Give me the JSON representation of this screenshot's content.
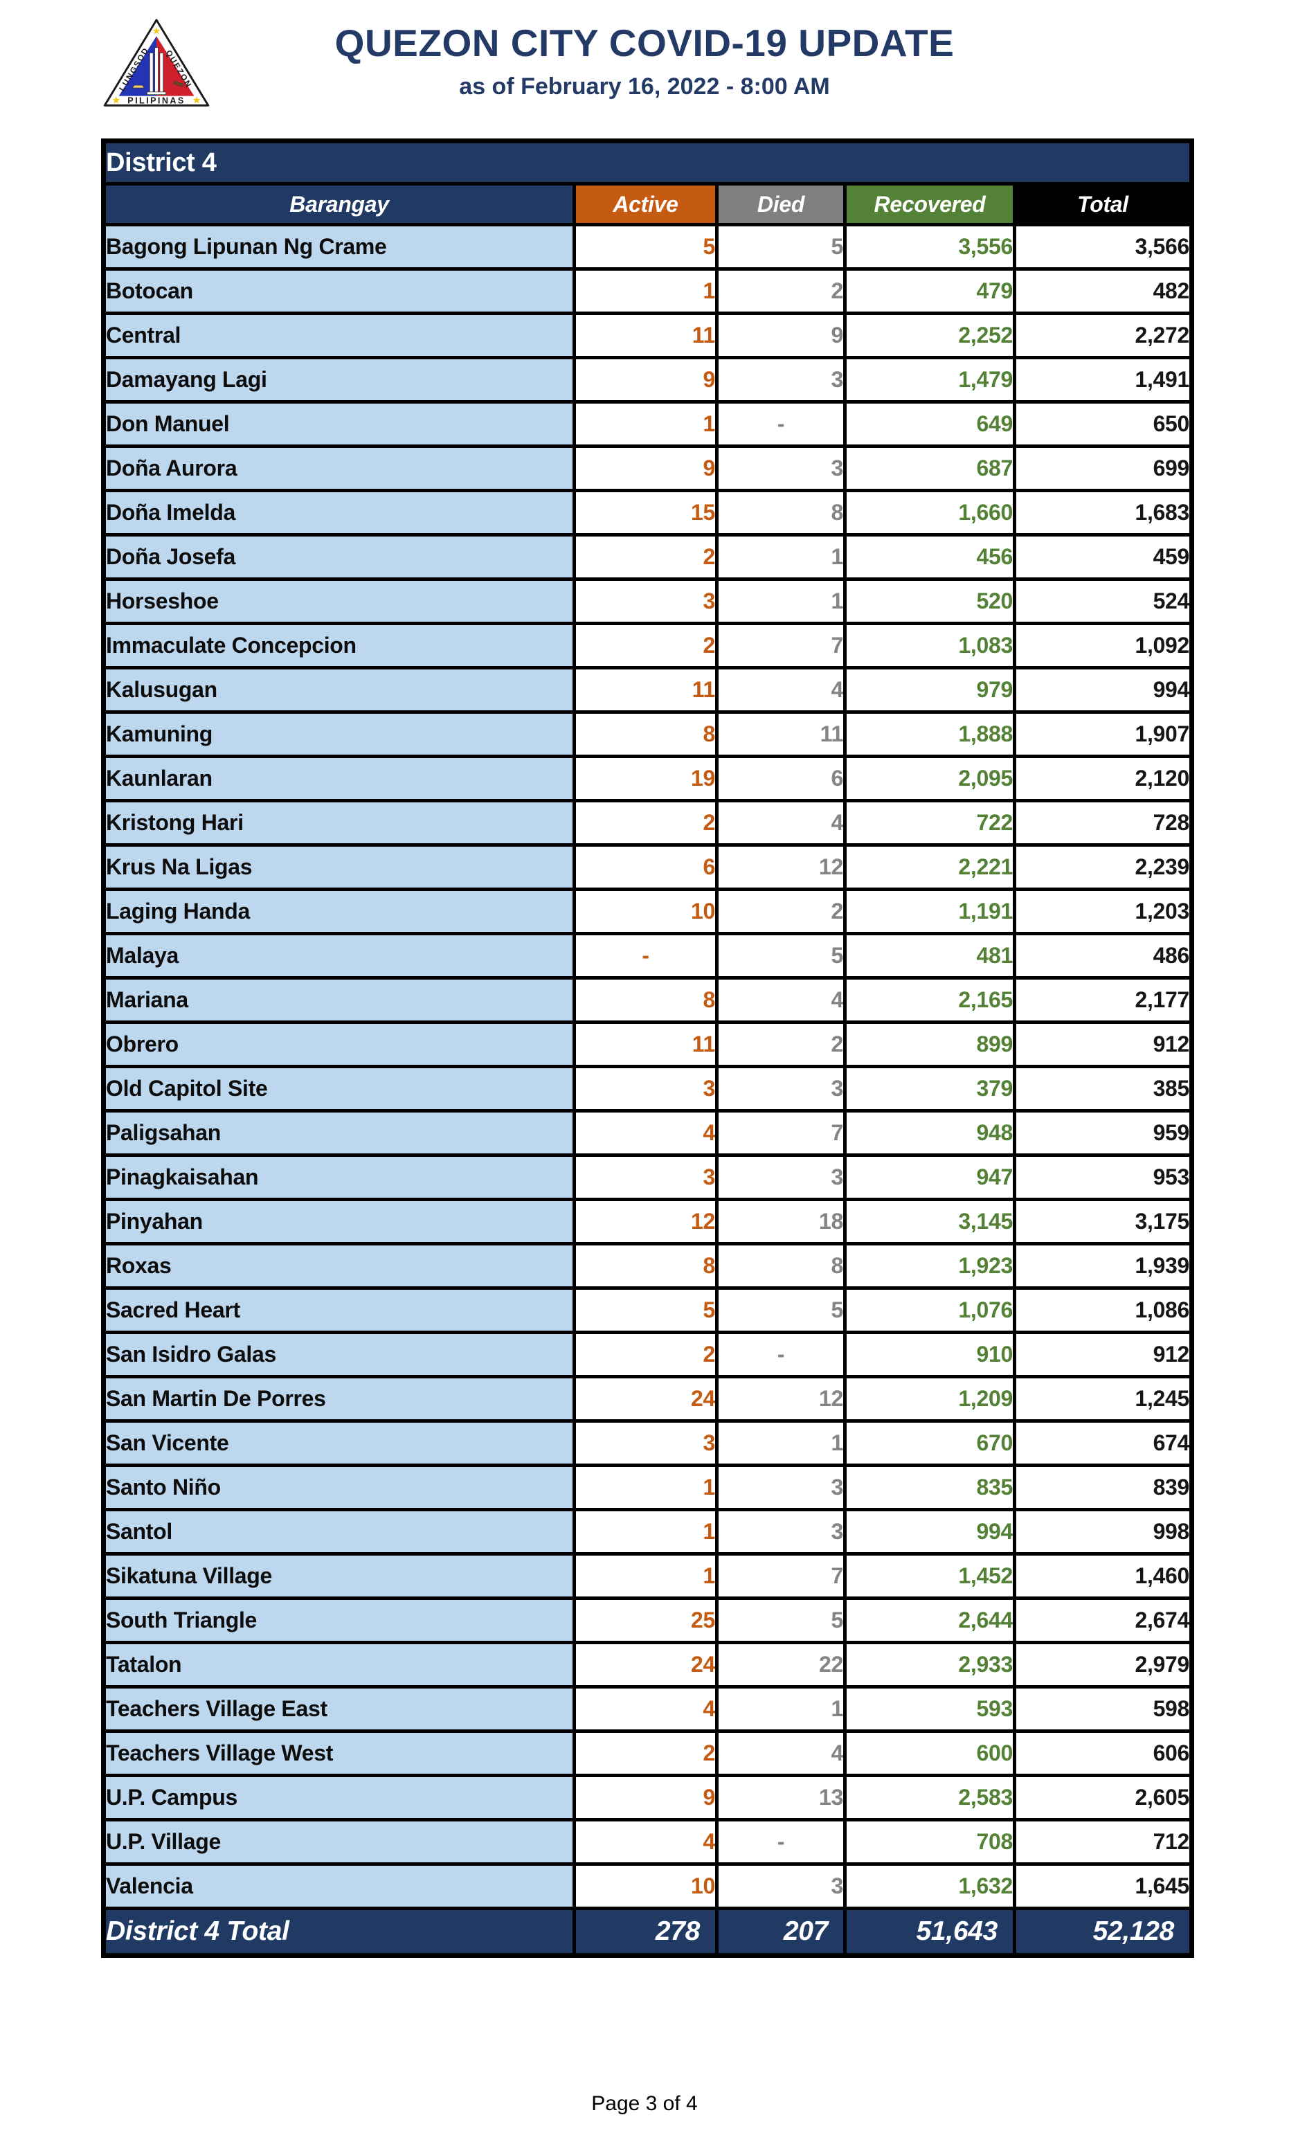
{
  "header": {
    "title": "QUEZON CITY COVID-19 UPDATE",
    "subtitle": "as of February 16, 2022 - 8:00 AM",
    "logo": {
      "name": "quezon-city-seal",
      "left_text": "LUNGSOD",
      "right_text": "QUEZON",
      "banner_text": "PILIPINAS"
    }
  },
  "colors": {
    "navy": "#203A63",
    "light_blue": "#BDD7EE",
    "active_orange": "#C55A11",
    "died_gray": "#7F7F7F",
    "recovered_green": "#538135",
    "total_black": "#000000"
  },
  "table": {
    "district_label": "District 4",
    "columns": [
      "Barangay",
      "Active",
      "Died",
      "Recovered",
      "Total"
    ],
    "rows": [
      {
        "barangay": "Bagong Lipunan Ng Crame",
        "active": "5",
        "died": "5",
        "recovered": "3,556",
        "total": "3,566"
      },
      {
        "barangay": "Botocan",
        "active": "1",
        "died": "2",
        "recovered": "479",
        "total": "482"
      },
      {
        "barangay": "Central",
        "active": "11",
        "died": "9",
        "recovered": "2,252",
        "total": "2,272"
      },
      {
        "barangay": "Damayang Lagi",
        "active": "9",
        "died": "3",
        "recovered": "1,479",
        "total": "1,491"
      },
      {
        "barangay": "Don Manuel",
        "active": "1",
        "died": "-",
        "recovered": "649",
        "total": "650"
      },
      {
        "barangay": "Doña Aurora",
        "active": "9",
        "died": "3",
        "recovered": "687",
        "total": "699"
      },
      {
        "barangay": "Doña Imelda",
        "active": "15",
        "died": "8",
        "recovered": "1,660",
        "total": "1,683"
      },
      {
        "barangay": "Doña Josefa",
        "active": "2",
        "died": "1",
        "recovered": "456",
        "total": "459"
      },
      {
        "barangay": "Horseshoe",
        "active": "3",
        "died": "1",
        "recovered": "520",
        "total": "524"
      },
      {
        "barangay": "Immaculate Concepcion",
        "active": "2",
        "died": "7",
        "recovered": "1,083",
        "total": "1,092"
      },
      {
        "barangay": "Kalusugan",
        "active": "11",
        "died": "4",
        "recovered": "979",
        "total": "994"
      },
      {
        "barangay": "Kamuning",
        "active": "8",
        "died": "11",
        "recovered": "1,888",
        "total": "1,907"
      },
      {
        "barangay": "Kaunlaran",
        "active": "19",
        "died": "6",
        "recovered": "2,095",
        "total": "2,120"
      },
      {
        "barangay": "Kristong Hari",
        "active": "2",
        "died": "4",
        "recovered": "722",
        "total": "728"
      },
      {
        "barangay": "Krus Na Ligas",
        "active": "6",
        "died": "12",
        "recovered": "2,221",
        "total": "2,239"
      },
      {
        "barangay": "Laging Handa",
        "active": "10",
        "died": "2",
        "recovered": "1,191",
        "total": "1,203"
      },
      {
        "barangay": "Malaya",
        "active": "-",
        "died": "5",
        "recovered": "481",
        "total": "486"
      },
      {
        "barangay": "Mariana",
        "active": "8",
        "died": "4",
        "recovered": "2,165",
        "total": "2,177"
      },
      {
        "barangay": "Obrero",
        "active": "11",
        "died": "2",
        "recovered": "899",
        "total": "912"
      },
      {
        "barangay": "Old Capitol Site",
        "active": "3",
        "died": "3",
        "recovered": "379",
        "total": "385"
      },
      {
        "barangay": "Paligsahan",
        "active": "4",
        "died": "7",
        "recovered": "948",
        "total": "959"
      },
      {
        "barangay": "Pinagkaisahan",
        "active": "3",
        "died": "3",
        "recovered": "947",
        "total": "953"
      },
      {
        "barangay": "Pinyahan",
        "active": "12",
        "died": "18",
        "recovered": "3,145",
        "total": "3,175"
      },
      {
        "barangay": "Roxas",
        "active": "8",
        "died": "8",
        "recovered": "1,923",
        "total": "1,939"
      },
      {
        "barangay": "Sacred Heart",
        "active": "5",
        "died": "5",
        "recovered": "1,076",
        "total": "1,086"
      },
      {
        "barangay": "San Isidro Galas",
        "active": "2",
        "died": "-",
        "recovered": "910",
        "total": "912"
      },
      {
        "barangay": "San Martin De Porres",
        "active": "24",
        "died": "12",
        "recovered": "1,209",
        "total": "1,245"
      },
      {
        "barangay": "San Vicente",
        "active": "3",
        "died": "1",
        "recovered": "670",
        "total": "674"
      },
      {
        "barangay": "Santo Niño",
        "active": "1",
        "died": "3",
        "recovered": "835",
        "total": "839"
      },
      {
        "barangay": "Santol",
        "active": "1",
        "died": "3",
        "recovered": "994",
        "total": "998"
      },
      {
        "barangay": "Sikatuna Village",
        "active": "1",
        "died": "7",
        "recovered": "1,452",
        "total": "1,460"
      },
      {
        "barangay": "South Triangle",
        "active": "25",
        "died": "5",
        "recovered": "2,644",
        "total": "2,674"
      },
      {
        "barangay": "Tatalon",
        "active": "24",
        "died": "22",
        "recovered": "2,933",
        "total": "2,979"
      },
      {
        "barangay": "Teachers Village East",
        "active": "4",
        "died": "1",
        "recovered": "593",
        "total": "598"
      },
      {
        "barangay": "Teachers Village West",
        "active": "2",
        "died": "4",
        "recovered": "600",
        "total": "606"
      },
      {
        "barangay": "U.P. Campus",
        "active": "9",
        "died": "13",
        "recovered": "2,583",
        "total": "2,605"
      },
      {
        "barangay": "U.P. Village",
        "active": "4",
        "died": "-",
        "recovered": "708",
        "total": "712"
      },
      {
        "barangay": "Valencia",
        "active": "10",
        "died": "3",
        "recovered": "1,632",
        "total": "1,645"
      }
    ],
    "total_row": {
      "label": "District 4 Total",
      "active": "278",
      "died": "207",
      "recovered": "51,643",
      "total": "52,128"
    }
  },
  "footer": {
    "page_label": "Page 3 of 4"
  }
}
